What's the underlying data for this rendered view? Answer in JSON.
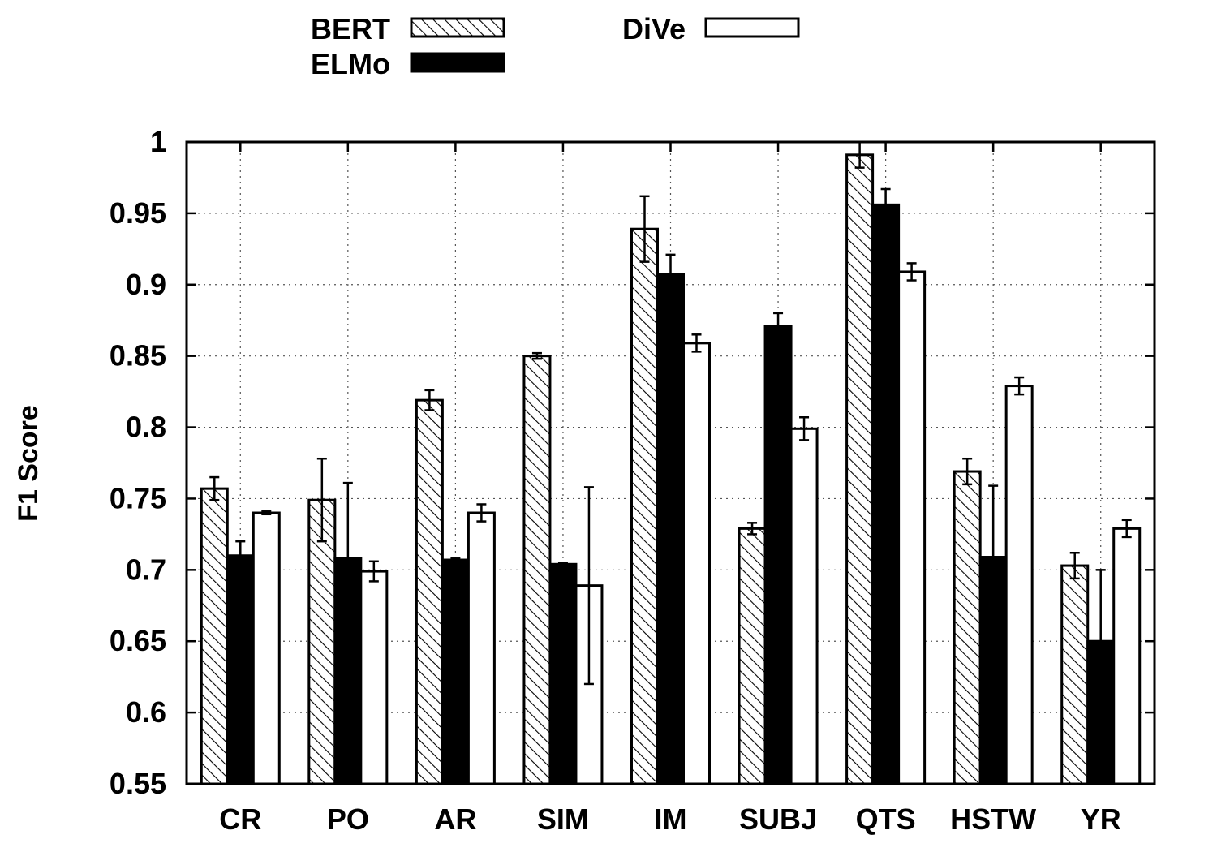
{
  "chart_data": {
    "type": "bar",
    "title": "",
    "xlabel": "",
    "ylabel": "F1 Score",
    "ylim": [
      0.55,
      1.0
    ],
    "yticks": [
      "0.55",
      "0.6",
      "0.65",
      "0.7",
      "0.75",
      "0.8",
      "0.85",
      "0.9",
      "0.95",
      "1"
    ],
    "grid": true,
    "legend_position": "top",
    "categories": [
      "CR",
      "PO",
      "AR",
      "SIM",
      "IM",
      "SUBJ",
      "QTS",
      "HSTW",
      "YR"
    ],
    "series": [
      {
        "name": "BERT",
        "fill": "hatched",
        "values": [
          0.757,
          0.749,
          0.819,
          0.85,
          0.939,
          0.729,
          0.991,
          0.769,
          0.703
        ],
        "errors": [
          0.008,
          0.029,
          0.007,
          0.002,
          0.023,
          0.004,
          0.009,
          0.009,
          0.009
        ]
      },
      {
        "name": "ELMo",
        "fill": "solid",
        "values": [
          0.71,
          0.708,
          0.707,
          0.704,
          0.907,
          0.871,
          0.956,
          0.709,
          0.65
        ],
        "errors": [
          0.01,
          0.053,
          0.001,
          0.001,
          0.014,
          0.009,
          0.011,
          0.05,
          0.05
        ]
      },
      {
        "name": "DiVe",
        "fill": "empty",
        "values": [
          0.74,
          0.699,
          0.74,
          0.689,
          0.859,
          0.799,
          0.909,
          0.829,
          0.729
        ],
        "errors": [
          0.001,
          0.007,
          0.006,
          0.069,
          0.006,
          0.008,
          0.006,
          0.006,
          0.006
        ]
      }
    ]
  }
}
